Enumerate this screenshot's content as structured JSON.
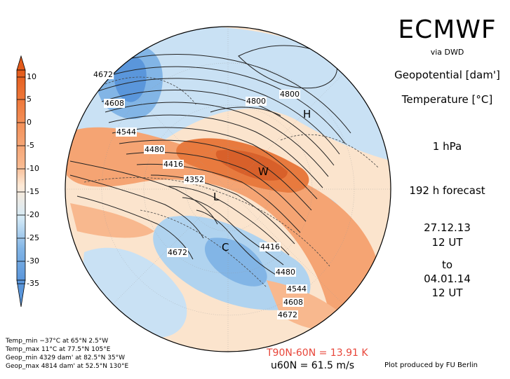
{
  "header": {
    "brand": "ECMWF",
    "source": "via DWD",
    "field1": "Geopotential [dam']",
    "field2": "Temperature [°C]",
    "level": "1 hPa",
    "forecast": "192 h forecast",
    "init_date": "27.12.13",
    "init_time": "12 UT",
    "to_label": "to",
    "valid_date": "04.01.14",
    "valid_time": "12 UT"
  },
  "colorbar": {
    "labels": [
      "10",
      "5",
      "0",
      "-5",
      "-10",
      "-15",
      "-20",
      "-25",
      "-30",
      "-35"
    ],
    "colors": [
      "#e35a1a",
      "#ef7a3d",
      "#f49a66",
      "#f8b88e",
      "#fbd2b0",
      "#fde9d6",
      "#d6ebf7",
      "#b0d3ef",
      "#82b5e6",
      "#5a96db"
    ]
  },
  "stats": {
    "temp_min": "Temp_min −37°C at 65°N 2.5°W",
    "temp_max": "Temp_max 11°C at 77.5°N 105°E",
    "geop_min": "Geop_min 4329 dam' at 82.5°N 35°W",
    "geop_max": "Geop_max 4814 dam' at 52.5°N 130°E"
  },
  "footer": {
    "t_diff": "T90N-60N = 13.91 K",
    "u60": "u60N = 61.5 m/s",
    "credit": "Plot produced by FU Berlin"
  },
  "map": {
    "contour_labels": [
      "4672",
      "4608",
      "4544",
      "4480",
      "4416",
      "4352",
      "4800",
      "4800",
      "4672",
      "4416",
      "4480",
      "4544",
      "4608",
      "4672"
    ],
    "markers": {
      "high": "H",
      "low": "L",
      "warm": "W",
      "cold": "C"
    },
    "colors": {
      "warm": "#e87a3e",
      "cool": "#8fbfea",
      "land": "#ffffff"
    }
  }
}
